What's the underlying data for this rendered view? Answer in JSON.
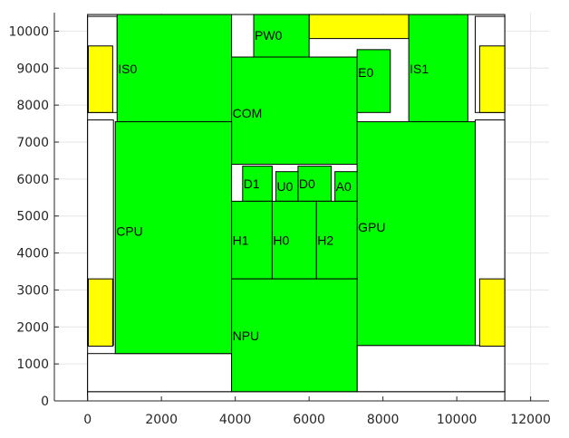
{
  "chart_data": {
    "type": "floorplan",
    "title": "",
    "xlabel": "",
    "ylabel": "",
    "xlim": [
      -900,
      12500
    ],
    "ylim": [
      0,
      10500
    ],
    "grid": true,
    "x_ticks": [
      0,
      2000,
      4000,
      6000,
      8000,
      10000,
      12000
    ],
    "y_ticks": [
      0,
      1000,
      2000,
      3000,
      4000,
      5000,
      6000,
      7000,
      8000,
      9000,
      10000
    ],
    "colors": {
      "green": "#00ff00",
      "yellow": "#ffff00",
      "white": "#ffffff"
    },
    "blocks": [
      {
        "label": "",
        "color": "white",
        "x": [
          0,
          11300
        ],
        "y": [
          0,
          10450
        ]
      },
      {
        "label": "",
        "color": "white",
        "x": [
          0,
          11300
        ],
        "y": [
          0,
          250
        ]
      },
      {
        "label": "",
        "color": "white",
        "x": [
          0,
          3900
        ],
        "y": [
          250,
          1280
        ]
      },
      {
        "label": "",
        "color": "white",
        "x": [
          7300,
          11300
        ],
        "y": [
          250,
          1500
        ]
      },
      {
        "label": "",
        "color": "white",
        "x": [
          0,
          700
        ],
        "y": [
          1500,
          7600
        ]
      },
      {
        "label": "",
        "color": "white",
        "x": [
          10500,
          11300
        ],
        "y": [
          1500,
          7600
        ]
      },
      {
        "label": "",
        "color": "white",
        "x": [
          0,
          800
        ],
        "y": [
          7800,
          10400
        ]
      },
      {
        "label": "",
        "color": "white",
        "x": [
          10500,
          11300
        ],
        "y": [
          7800,
          10400
        ]
      },
      {
        "label": "",
        "color": "yellow",
        "x": [
          20,
          680
        ],
        "y": [
          1480,
          3300
        ]
      },
      {
        "label": "",
        "color": "yellow",
        "x": [
          10620,
          11300
        ],
        "y": [
          1480,
          3300
        ]
      },
      {
        "label": "",
        "color": "yellow",
        "x": [
          20,
          680
        ],
        "y": [
          7800,
          9600
        ]
      },
      {
        "label": "",
        "color": "yellow",
        "x": [
          10620,
          11300
        ],
        "y": [
          7800,
          9600
        ]
      },
      {
        "label": "",
        "color": "yellow",
        "x": [
          6000,
          8700
        ],
        "y": [
          9800,
          10450
        ]
      },
      {
        "label": "IS0",
        "color": "green",
        "x": [
          800,
          3900
        ],
        "y": [
          7550,
          10450
        ]
      },
      {
        "label": "PW0",
        "color": "green",
        "x": [
          4500,
          6000
        ],
        "y": [
          9300,
          10450
        ]
      },
      {
        "label": "COM",
        "color": "green",
        "x": [
          3900,
          7300
        ],
        "y": [
          6400,
          9300
        ]
      },
      {
        "label": "E0",
        "color": "green",
        "x": [
          7300,
          8200
        ],
        "y": [
          7800,
          9500
        ]
      },
      {
        "label": "IS1",
        "color": "green",
        "x": [
          8700,
          10300
        ],
        "y": [
          7550,
          10450
        ]
      },
      {
        "label": "CPU",
        "color": "green",
        "x": [
          750,
          3900
        ],
        "y": [
          1280,
          7550
        ]
      },
      {
        "label": "GPU",
        "color": "green",
        "x": [
          7300,
          10500
        ],
        "y": [
          1500,
          7550
        ]
      },
      {
        "label": "D1",
        "color": "green",
        "x": [
          4200,
          5000
        ],
        "y": [
          5400,
          6350
        ]
      },
      {
        "label": "U0",
        "color": "green",
        "x": [
          5100,
          5700
        ],
        "y": [
          5400,
          6200
        ]
      },
      {
        "label": "D0",
        "color": "green",
        "x": [
          5700,
          6600
        ],
        "y": [
          5400,
          6350
        ]
      },
      {
        "label": "A0",
        "color": "green",
        "x": [
          6700,
          7300
        ],
        "y": [
          5400,
          6200
        ]
      },
      {
        "label": "H1",
        "color": "green",
        "x": [
          3900,
          5000
        ],
        "y": [
          3300,
          5400
        ]
      },
      {
        "label": "H0",
        "color": "green",
        "x": [
          5000,
          6200
        ],
        "y": [
          3300,
          5400
        ]
      },
      {
        "label": "H2",
        "color": "green",
        "x": [
          6200,
          7300
        ],
        "y": [
          3300,
          5400
        ]
      },
      {
        "label": "NPU",
        "color": "green",
        "x": [
          3900,
          7300
        ],
        "y": [
          250,
          3300
        ]
      }
    ]
  }
}
